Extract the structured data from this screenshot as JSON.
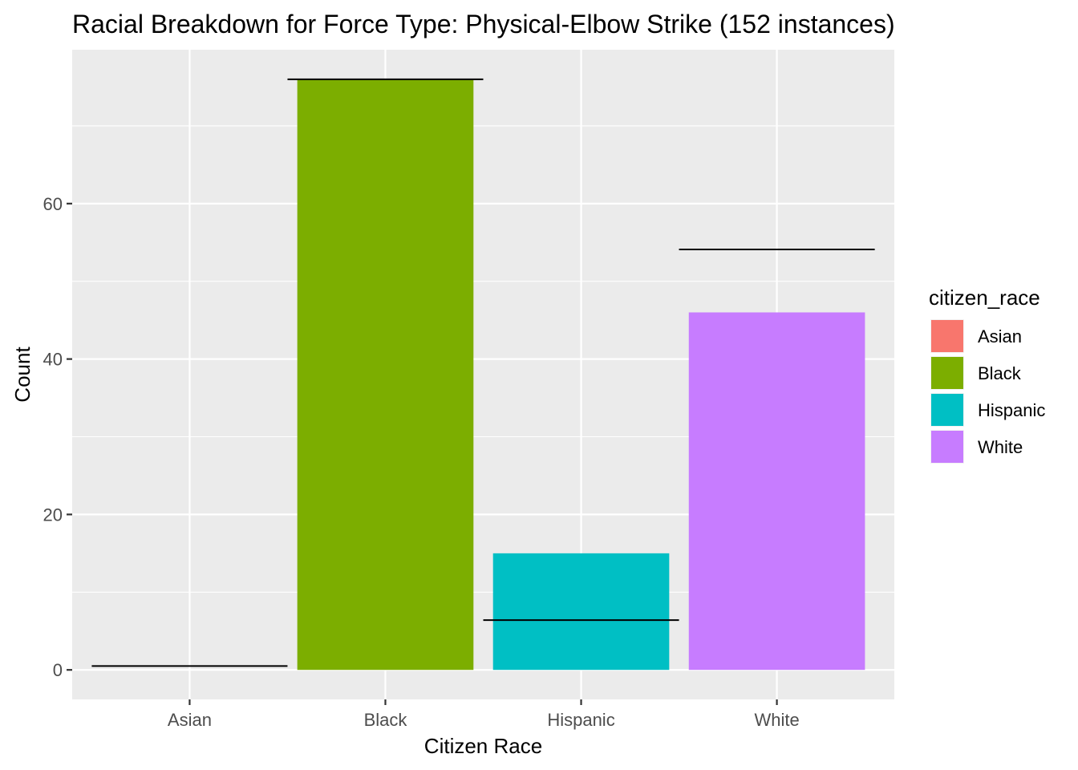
{
  "chart_data": {
    "type": "bar",
    "title": "Racial Breakdown for Force Type: Physical-Elbow Strike (152 instances)",
    "xlabel": "Citizen Race",
    "ylabel": "Count",
    "categories": [
      "Asian",
      "Black",
      "Hispanic",
      "White"
    ],
    "values": [
      0,
      76,
      15,
      46
    ],
    "reference_values": [
      0.5,
      76,
      6.4,
      54.1
    ],
    "ylim": [
      -3.8,
      79.8
    ],
    "yticks": [
      0,
      20,
      40,
      60
    ],
    "grid": true,
    "colors": [
      "#F8766D",
      "#7CAE00",
      "#00BFC4",
      "#C77CFF"
    ],
    "panel_background": "#EBEBEB",
    "grid_color": "#FFFFFF",
    "reference_line_color": "#000000",
    "legend": {
      "title": "citizen_race",
      "position": "right",
      "entries": [
        "Asian",
        "Black",
        "Hispanic",
        "White"
      ]
    }
  }
}
